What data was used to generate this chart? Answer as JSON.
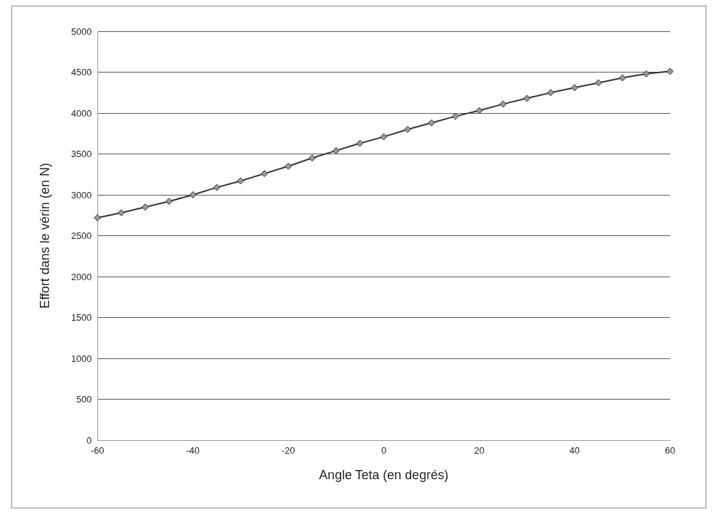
{
  "chart_data": {
    "type": "line",
    "xlabel": "Angle Teta (en degrés)",
    "ylabel": "Effort dans le vérin (en N)",
    "x": [
      -60,
      -55,
      -50,
      -45,
      -40,
      -35,
      -30,
      -25,
      -20,
      -15,
      -10,
      -5,
      0,
      5,
      10,
      15,
      20,
      25,
      30,
      35,
      40,
      45,
      50,
      55,
      60
    ],
    "series": [
      {
        "color": "#333333",
        "values": [
          2720,
          2780,
          2850,
          2920,
          3000,
          3090,
          3170,
          3260,
          3350,
          3450,
          3540,
          3630,
          3710,
          3800,
          3880,
          3960,
          4030,
          4110,
          4180,
          4250,
          4310,
          4370,
          4430,
          4480,
          4510
        ]
      }
    ],
    "xlim": [
      -60,
      60
    ],
    "xticks": [
      -60,
      -40,
      -20,
      0,
      20,
      40,
      60
    ],
    "ylim": [
      0,
      5000
    ],
    "yticks": [
      0,
      500,
      1000,
      1500,
      2000,
      2500,
      3000,
      3500,
      4000,
      4500,
      5000
    ],
    "grid": "y",
    "marker": "diamond",
    "line_style": "solid"
  }
}
